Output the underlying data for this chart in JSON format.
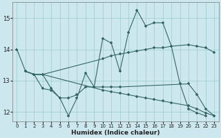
{
  "xlabel": "Humidex (Indice chaleur)",
  "background_color": "#cce8ee",
  "grid_color": "#99cccc",
  "line_color": "#336666",
  "xlim": [
    -0.5,
    23.5
  ],
  "ylim": [
    11.7,
    15.5
  ],
  "xticks": [
    0,
    1,
    2,
    3,
    4,
    5,
    6,
    7,
    8,
    9,
    10,
    11,
    12,
    13,
    14,
    15,
    16,
    17,
    18,
    19,
    20,
    21,
    22,
    23
  ],
  "yticks": [
    12,
    13,
    14,
    15
  ],
  "line1_x": [
    0,
    1,
    2,
    3,
    4,
    5,
    6,
    7,
    8,
    9,
    10,
    11,
    12,
    13,
    14,
    15,
    16,
    17,
    18,
    19,
    20,
    21,
    22
  ],
  "line1_y": [
    14.0,
    13.3,
    13.2,
    12.75,
    12.7,
    12.45,
    11.88,
    12.45,
    13.25,
    12.8,
    14.35,
    14.2,
    13.3,
    14.55,
    15.25,
    14.75,
    14.85,
    14.85,
    14.1,
    12.9,
    12.1,
    11.97,
    11.88
  ],
  "line2_x": [
    1,
    2,
    3,
    10,
    11,
    12,
    13,
    14,
    15,
    16,
    17,
    18,
    20,
    21,
    22,
    23
  ],
  "line2_y": [
    13.3,
    13.2,
    13.2,
    13.7,
    13.8,
    13.85,
    13.9,
    13.95,
    14.0,
    14.05,
    14.05,
    14.1,
    14.15,
    14.1,
    14.05,
    13.9
  ],
  "line3_x": [
    1,
    2,
    3,
    10,
    11,
    12,
    13,
    14,
    15,
    16,
    17,
    18,
    20,
    21,
    22,
    23
  ],
  "line3_y": [
    13.3,
    13.2,
    13.2,
    12.7,
    12.65,
    12.6,
    12.55,
    12.5,
    12.45,
    12.4,
    12.35,
    12.3,
    12.2,
    12.1,
    11.97,
    11.88
  ],
  "line4_x": [
    1,
    2,
    3,
    4,
    5,
    6,
    7,
    8,
    9,
    10,
    11,
    12,
    20,
    21,
    22,
    23
  ],
  "line4_y": [
    13.3,
    13.2,
    13.2,
    12.75,
    12.45,
    12.45,
    12.55,
    12.8,
    12.8,
    12.8,
    12.8,
    12.8,
    12.9,
    12.55,
    12.1,
    11.88
  ]
}
